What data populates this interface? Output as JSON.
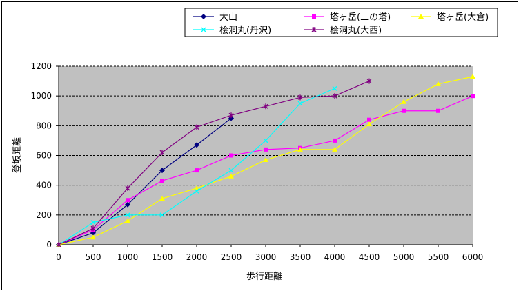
{
  "chart_data": {
    "type": "line",
    "xlabel": "歩行距離",
    "ylabel": "登坂距離",
    "xlim": [
      0,
      6000
    ],
    "ylim": [
      0,
      1200
    ],
    "xticks": [
      0,
      500,
      1000,
      1500,
      2000,
      2500,
      3000,
      3500,
      4000,
      4500,
      5000,
      5500,
      6000
    ],
    "yticks": [
      0,
      200,
      400,
      600,
      800,
      1000,
      1200
    ],
    "grid": "horizontal-dashed",
    "legend_position": "top",
    "plot_background": "#c0c0c0",
    "series": [
      {
        "name": "大山",
        "color": "#000080",
        "marker": "diamond",
        "x": [
          0,
          500,
          1000,
          1500,
          2000,
          2500
        ],
        "y": [
          0,
          80,
          270,
          500,
          670,
          850
        ]
      },
      {
        "name": "塔ヶ岳(二の塔)",
        "color": "#ff00ff",
        "marker": "square",
        "x": [
          0,
          500,
          1000,
          1500,
          2000,
          2500,
          3000,
          3500,
          4000,
          4500,
          5000,
          5500,
          6000
        ],
        "y": [
          0,
          100,
          300,
          430,
          500,
          600,
          640,
          650,
          700,
          840,
          900,
          900,
          1000
        ]
      },
      {
        "name": "塔ヶ岳(大倉)",
        "color": "#ffff00",
        "marker": "triangle",
        "x": [
          0,
          500,
          1000,
          1500,
          2000,
          2500,
          3000,
          3500,
          4000,
          4500,
          5000,
          5500,
          6000
        ],
        "y": [
          0,
          50,
          160,
          310,
          380,
          460,
          570,
          640,
          640,
          810,
          960,
          1080,
          1130
        ]
      },
      {
        "name": "桧洞丸(丹沢)",
        "color": "#00ffff",
        "marker": "x",
        "x": [
          0,
          500,
          1000,
          1500,
          2000,
          2500,
          3000,
          3500,
          4000
        ],
        "y": [
          0,
          150,
          200,
          200,
          360,
          500,
          700,
          950,
          1050
        ]
      },
      {
        "name": "桧洞丸(大西)",
        "color": "#800080",
        "marker": "star",
        "x": [
          0,
          500,
          1000,
          1500,
          2000,
          2500,
          3000,
          3500,
          4000,
          4500
        ],
        "y": [
          0,
          110,
          380,
          620,
          790,
          870,
          930,
          990,
          1000,
          1100
        ]
      }
    ]
  }
}
